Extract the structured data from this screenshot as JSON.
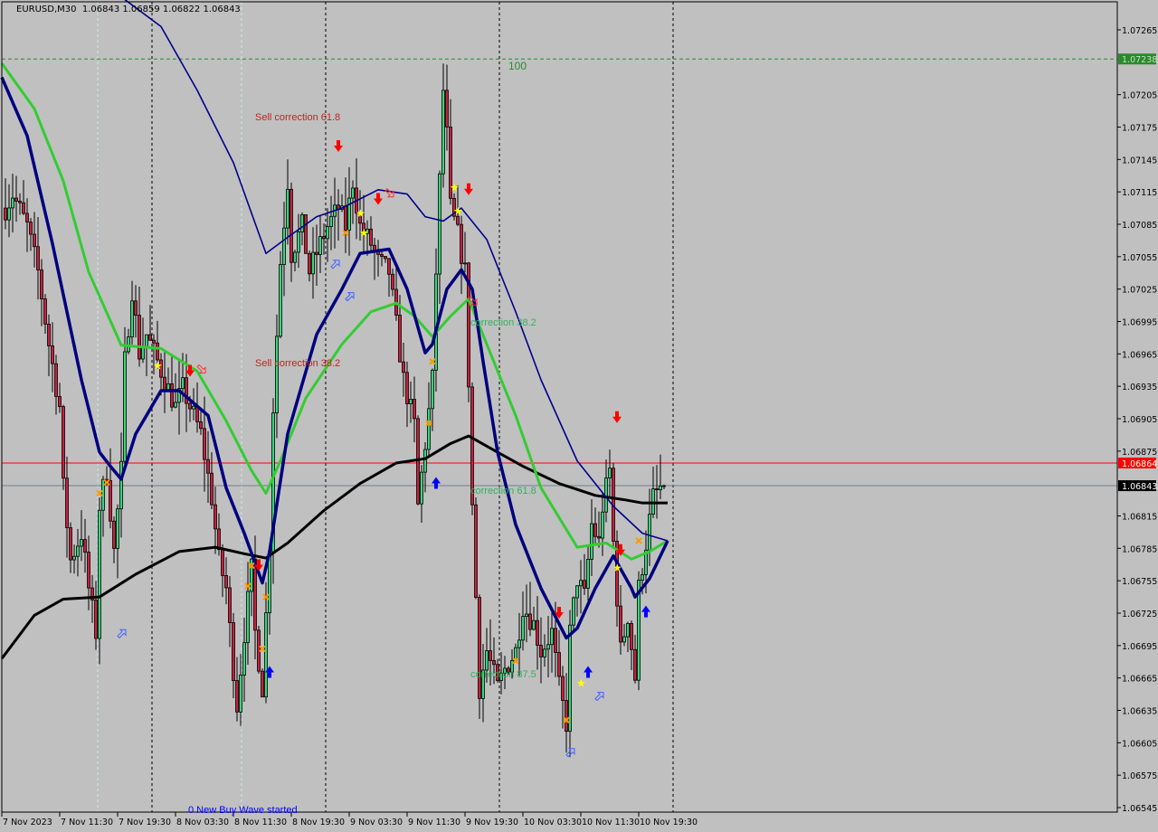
{
  "header": {
    "symbol": "EURUSD,M30",
    "ohlc": "1.06843 1.06859 1.06822 1.06843"
  },
  "colors": {
    "background": "#c0c0c0",
    "bull": "#37d67a",
    "bear": "#c8203c",
    "ma_black": "#000000",
    "ma_green": "#33cc33",
    "ma_navy": "#00007f",
    "resistance": "#2a8a2a",
    "red_line": "#ff0000",
    "bid_line": "#708090",
    "buy_arrow": "#0000ff",
    "sell_arrow": "#ff0000"
  },
  "labels": {
    "level_100": "100",
    "sell_correction_618": "Sell correction 61.8",
    "sell_correction_382": "Sell correction 38.2",
    "correction_382": "correction 38.2",
    "correction_618": "correction 61.8",
    "correction_875": "correction 87.5",
    "new_buy_wave": "0 New Buy Wave started"
  },
  "chart_data": {
    "type": "candlestick",
    "symbol": "EURUSD",
    "timeframe": "M30",
    "ylim": [
      1.06535,
      1.07295
    ],
    "price_ticks": [
      "1.07265",
      "1.07205",
      "1.07175",
      "1.07145",
      "1.07115",
      "1.07085",
      "1.07055",
      "1.07025",
      "1.06995",
      "1.06965",
      "1.06935",
      "1.06905",
      "1.06875",
      "1.06815",
      "1.06785",
      "1.06755",
      "1.06725",
      "1.06695",
      "1.06665",
      "1.06635",
      "1.06605",
      "1.06575",
      "1.06545"
    ],
    "time_ticks": [
      {
        "t": "7 Nov 03:30",
        "label": "7 Nov 2023"
      },
      {
        "t": "7 Nov 11:30",
        "label": "7 Nov 11:30"
      },
      {
        "t": "7 Nov 19:30",
        "label": "7 Nov 19:30"
      },
      {
        "t": "8 Nov 03:30",
        "label": "8 Nov 03:30"
      },
      {
        "t": "8 Nov 11:30",
        "label": "8 Nov 11:30"
      },
      {
        "t": "8 Nov 19:30",
        "label": "8 Nov 19:30"
      },
      {
        "t": "9 Nov 03:30",
        "label": "9 Nov 03:30"
      },
      {
        "t": "9 Nov 11:30",
        "label": "9 Nov 11:30"
      },
      {
        "t": "9 Nov 19:30",
        "label": "9 Nov 19:30"
      },
      {
        "t": "10 Nov 03:30",
        "label": "10 Nov 03:30"
      },
      {
        "t": "10 Nov 11:30",
        "label": "10 Nov 11:30"
      },
      {
        "t": "10 Nov 19:30",
        "label": "10 Nov 19:30"
      }
    ],
    "day_separators": [
      "8 Nov 00:00",
      "9 Nov 00:00",
      "10 Nov 00:00",
      "11 Nov 00:00"
    ],
    "levels": [
      {
        "price": 1.07238,
        "tag": "1.07238",
        "style": "dashed-green"
      },
      {
        "price": 1.06864,
        "tag": "1.06864",
        "style": "red"
      },
      {
        "price": 1.06843,
        "tag": "1.06843",
        "style": "bid"
      }
    ],
    "close_path": [
      [
        "7 Nov 03:30",
        1.071
      ],
      [
        "7 Nov 04:30",
        1.07113
      ],
      [
        "7 Nov 06:30",
        1.07083
      ],
      [
        "7 Nov 08:00",
        1.07041
      ],
      [
        "7 Nov 09:30",
        1.06974
      ],
      [
        "7 Nov 11:00",
        1.06916
      ],
      [
        "7 Nov 11:30",
        1.06841
      ],
      [
        "7 Nov 12:30",
        1.06774
      ],
      [
        "7 Nov 14:00",
        1.06799
      ],
      [
        "7 Nov 15:00",
        1.06748
      ],
      [
        "7 Nov 16:00",
        1.06707
      ],
      [
        "7 Nov 16:30",
        1.06824
      ],
      [
        "7 Nov 17:30",
        1.06857
      ],
      [
        "7 Nov 18:30",
        1.06782
      ],
      [
        "7 Nov 19:30",
        1.06857
      ],
      [
        "7 Nov 20:00",
        1.06958
      ],
      [
        "7 Nov 21:00",
        1.07025
      ],
      [
        "7 Nov 22:00",
        1.06966
      ],
      [
        "7 Nov 23:00",
        1.06983
      ],
      [
        "8 Nov 00:30",
        1.06958
      ],
      [
        "8 Nov 01:30",
        1.06941
      ],
      [
        "8 Nov 03:00",
        1.06916
      ],
      [
        "8 Nov 04:00",
        1.06933
      ],
      [
        "8 Nov 05:30",
        1.06908
      ],
      [
        "8 Nov 06:30",
        1.06891
      ],
      [
        "8 Nov 08:00",
        1.06832
      ],
      [
        "8 Nov 09:00",
        1.06774
      ],
      [
        "8 Nov 10:00",
        1.06748
      ],
      [
        "8 Nov 11:00",
        1.06673
      ],
      [
        "8 Nov 11:30",
        1.0664
      ],
      [
        "8 Nov 12:30",
        1.06707
      ],
      [
        "8 Nov 13:30",
        1.06765
      ],
      [
        "8 Nov 14:00",
        1.06707
      ],
      [
        "8 Nov 15:00",
        1.06656
      ],
      [
        "8 Nov 16:00",
        1.0679
      ],
      [
        "8 Nov 16:30",
        1.06916
      ],
      [
        "8 Nov 17:30",
        1.0705
      ],
      [
        "8 Nov 18:30",
        1.07125
      ],
      [
        "8 Nov 19:00",
        1.07058
      ],
      [
        "8 Nov 20:30",
        1.07083
      ],
      [
        "8 Nov 21:30",
        1.07041
      ],
      [
        "8 Nov 23:00",
        1.07067
      ],
      [
        "9 Nov 00:00",
        1.07083
      ],
      [
        "9 Nov 01:30",
        1.071
      ],
      [
        "9 Nov 02:30",
        1.07083
      ],
      [
        "9 Nov 03:30",
        1.07125
      ],
      [
        "9 Nov 04:30",
        1.07083
      ],
      [
        "9 Nov 06:00",
        1.07067
      ],
      [
        "9 Nov 07:00",
        1.0705
      ],
      [
        "9 Nov 08:30",
        1.07041
      ],
      [
        "9 Nov 09:30",
        1.06991
      ],
      [
        "9 Nov 10:30",
        1.06941
      ],
      [
        "9 Nov 12:00",
        1.06899
      ],
      [
        "9 Nov 12:30",
        1.06824
      ],
      [
        "9 Nov 13:30",
        1.06882
      ],
      [
        "9 Nov 14:30",
        1.06941
      ],
      [
        "9 Nov 15:00",
        1.07041
      ],
      [
        "9 Nov 16:00",
        1.07209
      ],
      [
        "9 Nov 16:30",
        1.07167
      ],
      [
        "9 Nov 17:00",
        1.071
      ],
      [
        "9 Nov 18:00",
        1.07075
      ],
      [
        "9 Nov 19:00",
        1.07041
      ],
      [
        "9 Nov 19:30",
        1.06941
      ],
      [
        "9 Nov 20:00",
        1.06824
      ],
      [
        "9 Nov 21:00",
        1.06656
      ],
      [
        "9 Nov 22:00",
        1.0669
      ],
      [
        "9 Nov 23:30",
        1.06656
      ],
      [
        "10 Nov 00:30",
        1.06673
      ],
      [
        "10 Nov 02:00",
        1.0669
      ],
      [
        "10 Nov 03:00",
        1.06732
      ],
      [
        "10 Nov 04:30",
        1.06715
      ],
      [
        "10 Nov 05:30",
        1.0669
      ],
      [
        "10 Nov 07:00",
        1.06707
      ],
      [
        "10 Nov 08:00",
        1.06656
      ],
      [
        "10 Nov 09:00",
        1.06623
      ],
      [
        "10 Nov 09:30",
        1.06707
      ],
      [
        "10 Nov 10:30",
        1.06757
      ],
      [
        "10 Nov 11:30",
        1.0674
      ],
      [
        "10 Nov 12:30",
        1.06807
      ],
      [
        "10 Nov 13:30",
        1.0679
      ],
      [
        "10 Nov 14:00",
        1.06824
      ],
      [
        "10 Nov 15:00",
        1.06857
      ],
      [
        "10 Nov 15:30",
        1.0679
      ],
      [
        "10 Nov 16:30",
        1.0669
      ],
      [
        "10 Nov 17:30",
        1.06723
      ],
      [
        "10 Nov 18:30",
        1.06665
      ],
      [
        "10 Nov 19:00",
        1.06748
      ],
      [
        "10 Nov 20:00",
        1.0679
      ],
      [
        "10 Nov 21:00",
        1.06832
      ],
      [
        "10 Nov 22:00",
        1.06841
      ],
      [
        "10 Nov 22:30",
        1.06843
      ]
    ],
    "indicators": [
      {
        "id": "ma-black",
        "color": "#000000",
        "width": 3,
        "points": [
          [
            "7 Nov 03:00",
            1.06683
          ],
          [
            "7 Nov 07:30",
            1.06723
          ],
          [
            "7 Nov 11:30",
            1.06738
          ],
          [
            "7 Nov 16:30",
            1.0674
          ],
          [
            "7 Nov 21:30",
            1.06761
          ],
          [
            "8 Nov 03:30",
            1.06782
          ],
          [
            "8 Nov 08:30",
            1.06786
          ],
          [
            "8 Nov 12:30",
            1.0678
          ],
          [
            "8 Nov 15:30",
            1.06776
          ],
          [
            "8 Nov 18:30",
            1.0679
          ],
          [
            "8 Nov 23:30",
            1.0682
          ],
          [
            "9 Nov 04:30",
            1.06845
          ],
          [
            "9 Nov 09:30",
            1.06864
          ],
          [
            "9 Nov 13:30",
            1.06868
          ],
          [
            "9 Nov 17:00",
            1.06882
          ],
          [
            "9 Nov 19:30",
            1.06889
          ],
          [
            "9 Nov 23:30",
            1.06874
          ],
          [
            "10 Nov 03:00",
            1.06861
          ],
          [
            "10 Nov 08:00",
            1.06845
          ],
          [
            "10 Nov 13:00",
            1.06834
          ],
          [
            "10 Nov 17:00",
            1.0683
          ],
          [
            "10 Nov 19:30",
            1.06827
          ],
          [
            "10 Nov 23:00",
            1.06827
          ]
        ]
      },
      {
        "id": "ma-green",
        "color": "#33cc33",
        "width": 3,
        "points": [
          [
            "7 Nov 03:00",
            1.07234
          ],
          [
            "7 Nov 07:30",
            1.07192
          ],
          [
            "7 Nov 11:30",
            1.07125
          ],
          [
            "7 Nov 15:00",
            1.07041
          ],
          [
            "7 Nov 19:30",
            1.06973
          ],
          [
            "8 Nov 01:00",
            1.0697
          ],
          [
            "8 Nov 06:00",
            1.06949
          ],
          [
            "8 Nov 10:00",
            1.06903
          ],
          [
            "8 Nov 13:30",
            1.06857
          ],
          [
            "8 Nov 15:30",
            1.06836
          ],
          [
            "8 Nov 17:30",
            1.06866
          ],
          [
            "8 Nov 21:00",
            1.06924
          ],
          [
            "9 Nov 02:00",
            1.06974
          ],
          [
            "9 Nov 06:00",
            1.07004
          ],
          [
            "9 Nov 09:30",
            1.07012
          ],
          [
            "9 Nov 12:00",
            1.07
          ],
          [
            "9 Nov 14:30",
            1.06981
          ],
          [
            "9 Nov 17:00",
            1.07
          ],
          [
            "9 Nov 19:30",
            1.07016
          ],
          [
            "9 Nov 22:00",
            1.06974
          ],
          [
            "10 Nov 02:00",
            1.06908
          ],
          [
            "10 Nov 05:30",
            1.06841
          ],
          [
            "10 Nov 10:30",
            1.06786
          ],
          [
            "10 Nov 14:30",
            1.0679
          ],
          [
            "10 Nov 18:00",
            1.06775
          ],
          [
            "10 Nov 20:30",
            1.06782
          ],
          [
            "10 Nov 23:00",
            1.06792
          ]
        ]
      },
      {
        "id": "ma-navy-fast",
        "color": "#00007f",
        "width": 3.5,
        "points": [
          [
            "7 Nov 03:00",
            1.07221
          ],
          [
            "7 Nov 06:30",
            1.07167
          ],
          [
            "7 Nov 10:00",
            1.07067
          ],
          [
            "7 Nov 14:00",
            1.06941
          ],
          [
            "7 Nov 16:30",
            1.06874
          ],
          [
            "7 Nov 18:00",
            1.06861
          ],
          [
            "7 Nov 19:30",
            1.06849
          ],
          [
            "7 Nov 21:30",
            1.06891
          ],
          [
            "8 Nov 01:00",
            1.06931
          ],
          [
            "8 Nov 03:30",
            1.06931
          ],
          [
            "8 Nov 07:30",
            1.06908
          ],
          [
            "8 Nov 10:00",
            1.06841
          ],
          [
            "8 Nov 12:30",
            1.06799
          ],
          [
            "8 Nov 15:00",
            1.06753
          ],
          [
            "8 Nov 16:00",
            1.06782
          ],
          [
            "8 Nov 18:30",
            1.06891
          ],
          [
            "8 Nov 22:30",
            1.06983
          ],
          [
            "9 Nov 02:00",
            1.07025
          ],
          [
            "9 Nov 04:30",
            1.07058
          ],
          [
            "9 Nov 08:30",
            1.07062
          ],
          [
            "9 Nov 11:00",
            1.07025
          ],
          [
            "9 Nov 13:30",
            1.06966
          ],
          [
            "9 Nov 14:30",
            1.06974
          ],
          [
            "9 Nov 16:30",
            1.07025
          ],
          [
            "9 Nov 18:30",
            1.07043
          ],
          [
            "9 Nov 20:00",
            1.07025
          ],
          [
            "9 Nov 21:30",
            1.06958
          ],
          [
            "9 Nov 23:30",
            1.06874
          ],
          [
            "10 Nov 02:00",
            1.06807
          ],
          [
            "10 Nov 05:30",
            1.06748
          ],
          [
            "10 Nov 09:00",
            1.06702
          ],
          [
            "10 Nov 10:30",
            1.06711
          ],
          [
            "10 Nov 13:00",
            1.06748
          ],
          [
            "10 Nov 15:30",
            1.06778
          ],
          [
            "10 Nov 18:00",
            1.06748
          ],
          [
            "10 Nov 18:30",
            1.0674
          ],
          [
            "10 Nov 20:30",
            1.06757
          ],
          [
            "10 Nov 23:00",
            1.06792
          ]
        ]
      },
      {
        "id": "ma-navy-slow",
        "color": "#00008b",
        "width": 1.6,
        "points": [
          [
            "7 Nov 20:00",
            1.07293
          ],
          [
            "8 Nov 01:00",
            1.07268
          ],
          [
            "8 Nov 06:00",
            1.07209
          ],
          [
            "8 Nov 11:00",
            1.07142
          ],
          [
            "8 Nov 15:30",
            1.07058
          ],
          [
            "8 Nov 18:30",
            1.07073
          ],
          [
            "8 Nov 22:30",
            1.07092
          ],
          [
            "9 Nov 02:00",
            1.071
          ],
          [
            "9 Nov 07:00",
            1.07117
          ],
          [
            "9 Nov 11:00",
            1.07113
          ],
          [
            "9 Nov 13:30",
            1.07092
          ],
          [
            "9 Nov 16:00",
            1.07088
          ],
          [
            "9 Nov 18:30",
            1.071
          ],
          [
            "9 Nov 22:00",
            1.07071
          ],
          [
            "10 Nov 02:00",
            1.07004
          ],
          [
            "10 Nov 05:30",
            1.06941
          ],
          [
            "10 Nov 10:30",
            1.06866
          ],
          [
            "10 Nov 15:30",
            1.06824
          ],
          [
            "10 Nov 19:30",
            1.06799
          ],
          [
            "10 Nov 23:00",
            1.06792
          ]
        ]
      }
    ],
    "markers": {
      "sell_arrows": [
        [
          "9 Nov 01:30",
          1.07157
        ],
        [
          "9 Nov 07:00",
          1.07108
        ],
        [
          "9 Nov 19:30",
          1.07117
        ],
        [
          "8 Nov 05:00",
          1.06949
        ],
        [
          "8 Nov 14:30",
          1.06769
        ],
        [
          "10 Nov 16:00",
          1.06906
        ],
        [
          "10 Nov 08:00",
          1.06725
        ],
        [
          "10 Nov 16:30",
          1.06783
        ]
      ],
      "buy_arrows": [
        [
          "9 Nov 15:00",
          1.06846
        ],
        [
          "8 Nov 16:00",
          1.06671
        ],
        [
          "10 Nov 12:00",
          1.06671
        ],
        [
          "10 Nov 20:00",
          1.06727
        ]
      ],
      "hollow_buy_arrows": [
        [
          "7 Nov 19:30",
          1.06708
        ],
        [
          "9 Nov 01:00",
          1.0705
        ],
        [
          "9 Nov 03:00",
          1.0702
        ],
        [
          "10 Nov 13:30",
          1.0665
        ],
        [
          "10 Nov 09:30",
          1.06598
        ]
      ],
      "hollow_sell_arrows": [
        [
          "8 Nov 06:30",
          1.06949
        ],
        [
          "9 Nov 08:30",
          1.07112
        ],
        [
          "9 Nov 20:00",
          1.07012
        ]
      ],
      "stars": [
        [
          "8 Nov 00:30",
          1.06954
        ],
        [
          "9 Nov 17:30",
          1.07119
        ],
        [
          "9 Nov 18:00",
          1.07097
        ],
        [
          "9 Nov 04:30",
          1.07095
        ],
        [
          "9 Nov 05:00",
          1.07077
        ],
        [
          "10 Nov 11:00",
          1.0666
        ],
        [
          "10 Nov 16:00",
          1.06767
        ]
      ],
      "crosses": [
        [
          "7 Nov 16:30",
          1.06836
        ],
        [
          "7 Nov 17:30",
          1.06846
        ],
        [
          "8 Nov 13:00",
          1.0675
        ],
        [
          "8 Nov 13:30",
          1.06769
        ],
        [
          "8 Nov 15:00",
          1.06692
        ],
        [
          "8 Nov 15:30",
          1.0674
        ],
        [
          "9 Nov 02:30",
          1.07077
        ],
        [
          "9 Nov 14:00",
          1.06901
        ],
        [
          "9 Nov 14:30",
          1.06958
        ],
        [
          "10 Nov 02:00",
          1.06681
        ],
        [
          "10 Nov 09:00",
          1.06626
        ],
        [
          "10 Nov 19:00",
          1.06792
        ]
      ]
    }
  }
}
